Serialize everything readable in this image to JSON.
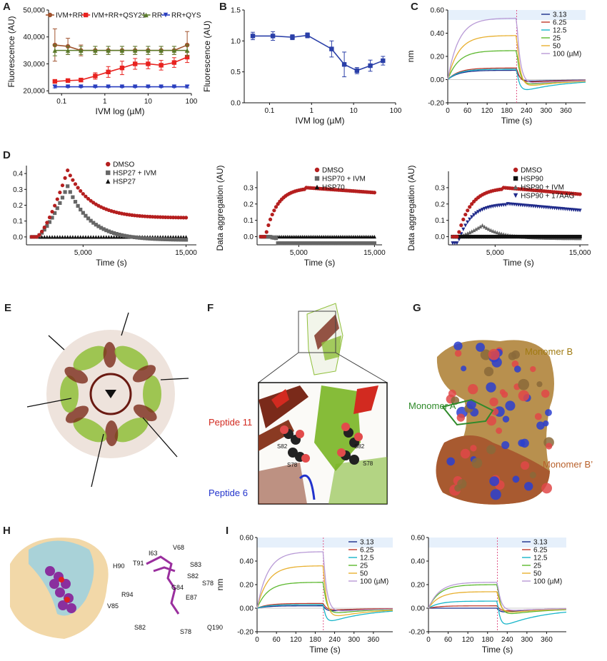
{
  "panel_labels": [
    "A",
    "B",
    "C",
    "D",
    "E",
    "F",
    "G",
    "H",
    "I"
  ],
  "chart_data": [
    {
      "id": "A",
      "type": "line",
      "xlabel": "IVM log (µM)",
      "ylabel": "Fluorescence (AU)",
      "xscale": "log",
      "xlim": [
        0.05,
        100
      ],
      "ylim": [
        19000,
        50000
      ],
      "x_ticks": [
        {
          "v": 0.1,
          "label": "0.1"
        },
        {
          "v": 1,
          "label": "1"
        },
        {
          "v": 10,
          "label": "10"
        },
        {
          "v": 100,
          "label": "100"
        }
      ],
      "y_ticks": [
        {
          "v": 20000,
          "label": "20,000"
        },
        {
          "v": 30000,
          "label": "30,000"
        },
        {
          "v": 40000,
          "label": "40,000"
        },
        {
          "v": 50000,
          "label": "50,000"
        }
      ],
      "x": [
        0.07,
        0.14,
        0.28,
        0.6,
        1.2,
        2.5,
        5,
        10,
        20,
        40,
        80
      ],
      "legend_position": "top",
      "series": [
        {
          "name": "IVM+RR",
          "color": "#a0522d",
          "marker": "circle",
          "values": [
            37000,
            36500,
            35000,
            35000,
            35000,
            35000,
            35000,
            35000,
            35000,
            35000,
            37000
          ],
          "err": [
            6000,
            3000,
            2000,
            1500,
            1500,
            1500,
            1500,
            1500,
            1500,
            1500,
            5000
          ]
        },
        {
          "name": "IVM+RR+QSY21",
          "color": "#e8221f",
          "marker": "square",
          "values": [
            23500,
            23800,
            24000,
            25500,
            27000,
            28500,
            30000,
            30000,
            29500,
            30500,
            32500
          ],
          "err": [
            400,
            400,
            500,
            1200,
            2000,
            2500,
            2000,
            1800,
            1800,
            1800,
            2000
          ]
        },
        {
          "name": "RR",
          "color": "#5a7a2a",
          "marker": "triangle",
          "values": [
            35000,
            35000,
            35000,
            35000,
            35000,
            35000,
            35000,
            35000,
            35000,
            35000,
            35000
          ],
          "err": [
            2000,
            1500,
            1500,
            1500,
            1500,
            1500,
            1500,
            1500,
            1500,
            1500,
            2000
          ]
        },
        {
          "name": "RR+QYS",
          "color": "#2a3fbf",
          "marker": "triangle-down",
          "values": [
            21500,
            21500,
            21500,
            21500,
            21500,
            21500,
            21500,
            21500,
            21500,
            21500,
            21500
          ],
          "err": [
            400,
            300,
            300,
            300,
            300,
            300,
            300,
            300,
            300,
            300,
            400
          ]
        }
      ]
    },
    {
      "id": "B",
      "type": "line",
      "xlabel": "IVM log (µM)",
      "ylabel": "Fluorescence (AU)",
      "xscale": "log",
      "xlim": [
        0.025,
        100
      ],
      "ylim": [
        0,
        1.5
      ],
      "x_ticks": [
        {
          "v": 0.1,
          "label": "0.1"
        },
        {
          "v": 1,
          "label": "1"
        },
        {
          "v": 10,
          "label": "10"
        },
        {
          "v": 100,
          "label": "100"
        }
      ],
      "y_ticks": [
        {
          "v": 0,
          "label": "0.0"
        },
        {
          "v": 0.5,
          "label": "0.5"
        },
        {
          "v": 1,
          "label": "1.0"
        },
        {
          "v": 1.5,
          "label": "1.5"
        }
      ],
      "x": [
        0.04,
        0.12,
        0.35,
        0.8,
        3,
        6,
        12,
        25,
        50
      ],
      "series": [
        {
          "name": "IVM",
          "color": "#2a3fa8",
          "marker": "square",
          "values": [
            1.08,
            1.08,
            1.06,
            1.09,
            0.87,
            0.62,
            0.52,
            0.6,
            0.68
          ],
          "err": [
            0.06,
            0.07,
            0.04,
            0.04,
            0.13,
            0.2,
            0.05,
            0.09,
            0.07
          ]
        }
      ]
    },
    {
      "id": "C",
      "type": "line",
      "xlabel": "Time (s)",
      "ylabel": "nm",
      "xlim": [
        0,
        420
      ],
      "ylim": [
        -0.2,
        0.6
      ],
      "x_ticks": [
        {
          "v": 0,
          "label": "0"
        },
        {
          "v": 60,
          "label": "60"
        },
        {
          "v": 120,
          "label": "120"
        },
        {
          "v": 180,
          "label": "180"
        },
        {
          "v": 240,
          "label": "240"
        },
        {
          "v": 300,
          "label": "300"
        },
        {
          "v": 360,
          "label": "360"
        }
      ],
      "y_ticks": [
        {
          "v": -0.2,
          "label": "-0.20"
        },
        {
          "v": 0,
          "label": "0.00"
        },
        {
          "v": 0.2,
          "label": "0.20"
        },
        {
          "v": 0.4,
          "label": "0.40"
        },
        {
          "v": 0.6,
          "label": "0.60"
        }
      ],
      "dissociation_start": 210,
      "legend_position": "top-right",
      "series": [
        {
          "name": "3.13",
          "color": "#1a2f8a",
          "plateau": 0.08,
          "undershoot": -0.02
        },
        {
          "name": "6.25",
          "color": "#c0392b",
          "plateau": 0.1,
          "undershoot": -0.03
        },
        {
          "name": "12.5",
          "color": "#17b5c9",
          "plateau": 0.09,
          "undershoot": -0.12
        },
        {
          "name": "25",
          "color": "#5cb82e",
          "plateau": 0.25,
          "undershoot": -0.06
        },
        {
          "name": "50",
          "color": "#e8b030",
          "plateau": 0.38,
          "undershoot": -0.08
        },
        {
          "name": "100 (µM)",
          "color": "#b89ad6",
          "plateau": 0.53,
          "undershoot": -0.05
        }
      ]
    },
    {
      "id": "D1",
      "type": "scatter",
      "xlabel": "Time (s)",
      "ylabel": "Data aggregation (AU)",
      "xlim": [
        -500,
        16000
      ],
      "ylim": [
        -0.05,
        0.45
      ],
      "x_ticks": [
        {
          "v": 5000,
          "label": "5,000"
        },
        {
          "v": 15000,
          "label": "15,000"
        }
      ],
      "y_ticks": [
        {
          "v": 0,
          "label": "0.0"
        },
        {
          "v": 0.1,
          "label": "0.1"
        },
        {
          "v": 0.2,
          "label": "0.2"
        },
        {
          "v": 0.3,
          "label": "0.3"
        },
        {
          "v": 0.4,
          "label": "0.4"
        }
      ],
      "legend_position": "top-right",
      "series": [
        {
          "name": "DMSO",
          "color": "#b51f1f",
          "marker": "circle",
          "shape": "peak",
          "peak_x": 3500,
          "peak": 0.42,
          "end": 0.12
        },
        {
          "name": "HSP27 + IVM",
          "color": "#666666",
          "marker": "square",
          "shape": "peak",
          "peak_x": 3500,
          "peak": 0.32,
          "end": -0.02
        },
        {
          "name": "HSP27",
          "color": "#111111",
          "marker": "triangle",
          "shape": "flat",
          "level": 0.0
        }
      ]
    },
    {
      "id": "D2",
      "type": "scatter",
      "xlabel": "Time (s)",
      "ylabel": "Data aggregation (AU)",
      "xlim": [
        -500,
        16000
      ],
      "ylim": [
        -0.05,
        0.4
      ],
      "x_ticks": [
        {
          "v": 5000,
          "label": "5,000"
        },
        {
          "v": 15000,
          "label": "15,000"
        }
      ],
      "y_ticks": [
        {
          "v": 0,
          "label": "0.0"
        },
        {
          "v": 0.1,
          "label": "0.1"
        },
        {
          "v": 0.2,
          "label": "0.2"
        },
        {
          "v": 0.3,
          "label": "0.3"
        }
      ],
      "legend_position": "top-right",
      "series": [
        {
          "name": "DMSO",
          "color": "#b51f1f",
          "marker": "circle",
          "shape": "rise",
          "start": 0,
          "plateau": 0.3,
          "end": 0.27,
          "rise_x": 6000
        },
        {
          "name": "HSP70 + IVM",
          "color": "#666666",
          "marker": "square",
          "shape": "dip",
          "level": -0.04
        },
        {
          "name": "HSP70",
          "color": "#111111",
          "marker": "triangle",
          "shape": "flat",
          "level": 0.0
        }
      ]
    },
    {
      "id": "D3",
      "type": "scatter",
      "xlabel": "Time (s)",
      "ylabel": "Data aggregation (AU)",
      "xlim": [
        -500,
        16000
      ],
      "ylim": [
        -0.05,
        0.4
      ],
      "x_ticks": [
        {
          "v": 5000,
          "label": "5,000"
        },
        {
          "v": 15000,
          "label": "15,000"
        }
      ],
      "y_ticks": [
        {
          "v": 0,
          "label": "0.0"
        },
        {
          "v": 0.1,
          "label": "0.1"
        },
        {
          "v": 0.2,
          "label": "0.2"
        },
        {
          "v": 0.3,
          "label": "0.3"
        }
      ],
      "legend_position": "top-right",
      "series": [
        {
          "name": "DMSO",
          "color": "#b51f1f",
          "marker": "circle",
          "shape": "rise",
          "start": 0,
          "plateau": 0.3,
          "end": 0.26,
          "rise_x": 6000
        },
        {
          "name": "HSP90",
          "color": "#111111",
          "marker": "square",
          "shape": "flat",
          "level": 0.0
        },
        {
          "name": "HSP90 + IVM",
          "color": "#666666",
          "marker": "triangle",
          "shape": "peak",
          "peak_x": 3500,
          "peak": 0.07,
          "end": -0.01
        },
        {
          "name": "HSP90 + 17AAG",
          "color": "#1f2a8a",
          "marker": "triangle-down",
          "shape": "rise",
          "start": -0.04,
          "plateau": 0.2,
          "end": 0.16,
          "rise_x": 6500
        }
      ]
    },
    {
      "id": "I1",
      "type": "line",
      "xlabel": "Time (s)",
      "ylabel": "nm",
      "xlim": [
        0,
        420
      ],
      "ylim": [
        -0.2,
        0.6
      ],
      "x_ticks": [
        {
          "v": 0,
          "label": "0"
        },
        {
          "v": 60,
          "label": "60"
        },
        {
          "v": 120,
          "label": "120"
        },
        {
          "v": 180,
          "label": "180"
        },
        {
          "v": 240,
          "label": "240"
        },
        {
          "v": 300,
          "label": "300"
        },
        {
          "v": 360,
          "label": "360"
        }
      ],
      "y_ticks": [
        {
          "v": -0.2,
          "label": "-0.20"
        },
        {
          "v": 0,
          "label": "0.00"
        },
        {
          "v": 0.2,
          "label": "0.20"
        },
        {
          "v": 0.4,
          "label": "0.40"
        },
        {
          "v": 0.6,
          "label": "0.60"
        }
      ],
      "dissociation_start": 205,
      "legend_position": "top-right",
      "series": [
        {
          "name": "3.13",
          "color": "#1a2f8a",
          "plateau": 0.02,
          "undershoot": -0.03
        },
        {
          "name": "6.25",
          "color": "#c0392b",
          "plateau": 0.04,
          "undershoot": -0.02
        },
        {
          "name": "12.5",
          "color": "#17b5c9",
          "plateau": 0.03,
          "undershoot": -0.14
        },
        {
          "name": "25",
          "color": "#5cb82e",
          "plateau": 0.22,
          "undershoot": -0.06
        },
        {
          "name": "50",
          "color": "#e8b030",
          "plateau": 0.36,
          "undershoot": -0.1
        },
        {
          "name": "100 (µM)",
          "color": "#b89ad6",
          "plateau": 0.48,
          "undershoot": -0.04
        }
      ]
    },
    {
      "id": "I2",
      "type": "line",
      "xlabel": "Time (s)",
      "ylabel": "",
      "xlim": [
        0,
        420
      ],
      "ylim": [
        -0.2,
        0.6
      ],
      "x_ticks": [
        {
          "v": 0,
          "label": "0"
        },
        {
          "v": 60,
          "label": "60"
        },
        {
          "v": 120,
          "label": "120"
        },
        {
          "v": 180,
          "label": "180"
        },
        {
          "v": 240,
          "label": "240"
        },
        {
          "v": 300,
          "label": "300"
        },
        {
          "v": 360,
          "label": "360"
        }
      ],
      "y_ticks": [
        {
          "v": -0.2,
          "label": "-0.20"
        },
        {
          "v": 0,
          "label": "0.00"
        },
        {
          "v": 0.2,
          "label": "0.20"
        },
        {
          "v": 0.4,
          "label": "0.40"
        },
        {
          "v": 0.6,
          "label": "0.60"
        }
      ],
      "dissociation_start": 210,
      "legend_position": "top-right",
      "series": [
        {
          "name": "3.13",
          "color": "#1a2f8a",
          "plateau": 0.0,
          "undershoot": -0.04
        },
        {
          "name": "6.25",
          "color": "#c0392b",
          "plateau": 0.02,
          "undershoot": -0.03
        },
        {
          "name": "12.5",
          "color": "#17b5c9",
          "plateau": 0.06,
          "undershoot": -0.18
        },
        {
          "name": "25",
          "color": "#5cb82e",
          "plateau": 0.2,
          "undershoot": -0.07
        },
        {
          "name": "50",
          "color": "#e8b030",
          "plateau": 0.14,
          "undershoot": -0.05
        },
        {
          "name": "100 (µM)",
          "color": "#b89ad6",
          "plateau": 0.22,
          "undershoot": -0.03
        }
      ]
    }
  ],
  "panel_F": {
    "peptide_11": "Peptide 11",
    "peptide_6": "Peptide 6",
    "s82a": "S82",
    "s82b": "S82",
    "s78a": "S78",
    "s78b": "S78"
  },
  "panel_G": {
    "monomer_b": "Monomer B",
    "monomer_a": "Monomer A",
    "monomer_b_prime": "Monomer B’"
  },
  "panel_H": {
    "residues": [
      "V68",
      "I63",
      "T91",
      "H90",
      "S83",
      "S82",
      "S78",
      "G84",
      "R94",
      "E87",
      "V85",
      "S82",
      "S78",
      "Q190"
    ]
  }
}
